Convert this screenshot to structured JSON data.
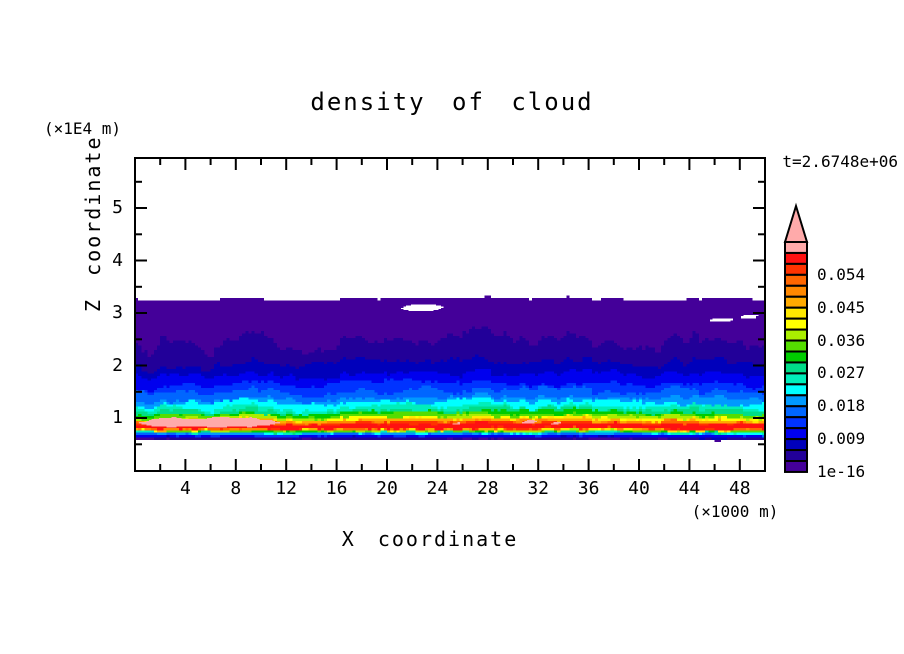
{
  "window": {
    "background": "#FFFFFF",
    "frame_color": "#000000"
  },
  "title": "density of cloud",
  "labels": {
    "z_axis_unit": "(×1E4 m)",
    "timestamp": "t=2.6748e+06",
    "x_axis_title": "X coordinate",
    "z_axis_title": "Z coordinate",
    "x_axis_unit": "(×1000 m)"
  },
  "x_axis": {
    "range": [
      0,
      50
    ],
    "major_ticks": [
      4,
      8,
      12,
      16,
      20,
      24,
      28,
      32,
      36,
      40,
      44,
      48
    ],
    "minor_ticks": [
      2,
      6,
      10,
      14,
      18,
      22,
      26,
      30,
      34,
      38,
      42,
      46
    ]
  },
  "z_axis": {
    "range": [
      0,
      5.95
    ],
    "major_ticks": [
      1,
      2,
      3,
      4,
      5
    ],
    "minor_ticks": [
      0.5,
      1.5,
      2.5,
      3.5,
      4.5,
      5.5
    ]
  },
  "colorbar": {
    "has_overflow_arrow": true,
    "labels": [
      {
        "text": "0.054",
        "boundary_index": 18
      },
      {
        "text": "0.045",
        "boundary_index": 15
      },
      {
        "text": "0.036",
        "boundary_index": 12
      },
      {
        "text": "0.027",
        "boundary_index": 9
      },
      {
        "text": "0.018",
        "boundary_index": 6
      },
      {
        "text": "0.009",
        "boundary_index": 3
      },
      {
        "text": "1e-16",
        "boundary_index": 0
      }
    ]
  },
  "chart_data": {
    "type": "heatmap",
    "title": "density of cloud",
    "xlabel": "X coordinate (×1000 m)",
    "ylabel": "Z coordinate (×1E4 m)",
    "time_annotation": "t=2.6748e+06",
    "x_range": [
      0,
      50
    ],
    "z_range": [
      0,
      5.95
    ],
    "contour_levels": [
      1e-16,
      0.003,
      0.006,
      0.009,
      0.012,
      0.015,
      0.018,
      0.021,
      0.024,
      0.027,
      0.03,
      0.033,
      0.036,
      0.039,
      0.042,
      0.045,
      0.048,
      0.051,
      0.054,
      0.057,
      0.06
    ],
    "palette": [
      "#440099",
      "#220099",
      "#0000BB",
      "#0000EE",
      "#0033FF",
      "#0066FF",
      "#0099FF",
      "#00FFFF",
      "#00EEBB",
      "#00DD88",
      "#00CC00",
      "#55DD00",
      "#AAEE00",
      "#FFFF00",
      "#FFE800",
      "#FFAA00",
      "#FF8800",
      "#FF6600",
      "#FF3300",
      "#FF1111",
      "#FFAAAA"
    ],
    "structure": "horizontally stratified cloud-density field: cloud top near z=3.3, density increasing downward to a maximum above 0.06 near z=0.9, sharp cutoff to clear air below z=0.6",
    "bands": [
      {
        "upper": [
          3.27,
          0.05
        ],
        "lower": [
          0.575,
          0.02
        ]
      },
      {
        "upper": [
          2.45,
          0.33
        ],
        "lower": [
          0.6,
          0.022
        ]
      },
      {
        "upper": [
          2.05,
          0.24
        ],
        "lower": [
          0.622,
          0.024
        ]
      },
      {
        "upper": [
          1.82,
          0.2
        ],
        "lower": [
          0.642,
          0.026
        ]
      },
      {
        "upper": [
          1.64,
          0.18
        ],
        "lower": [
          0.66,
          0.028
        ]
      },
      {
        "upper": [
          1.5,
          0.17
        ],
        "lower": [
          0.676,
          0.03
        ]
      },
      {
        "upper": [
          1.38,
          0.16
        ],
        "lower": [
          0.69,
          0.032
        ]
      },
      {
        "upper": [
          1.285,
          0.15
        ],
        "lower": [
          0.703,
          0.034
        ]
      },
      {
        "upper": [
          1.21,
          0.14
        ],
        "lower": [
          0.714,
          0.036
        ]
      },
      {
        "upper": [
          1.15,
          0.13
        ],
        "lower": [
          0.724,
          0.038
        ]
      },
      {
        "upper": [
          1.1,
          0.12
        ],
        "lower": [
          0.733,
          0.04
        ]
      },
      {
        "upper": [
          1.06,
          0.11
        ],
        "lower": [
          0.741,
          0.042
        ]
      },
      {
        "upper": [
          1.025,
          0.1
        ],
        "lower": [
          0.748,
          0.044
        ]
      },
      {
        "upper": [
          1.0,
          0.095
        ],
        "lower": [
          0.754,
          0.046
        ]
      },
      {
        "upper": [
          0.975,
          0.09
        ],
        "lower": [
          0.76,
          0.048
        ]
      },
      {
        "upper": [
          0.955,
          0.085
        ],
        "lower": [
          0.766,
          0.05
        ]
      },
      {
        "upper": [
          0.935,
          0.08
        ],
        "lower": [
          0.772,
          0.052
        ]
      },
      {
        "upper": [
          0.92,
          0.075
        ],
        "lower": [
          0.778,
          0.054
        ]
      },
      {
        "upper": [
          0.905,
          0.07
        ],
        "lower": [
          0.784,
          0.056
        ]
      },
      {
        "upper": [
          0.89,
          0.065
        ],
        "lower": [
          0.79,
          0.058
        ]
      }
    ],
    "peak_patches": [
      {
        "x": [
          0.3,
          11.5
        ],
        "z": 0.91,
        "half_height": 0.1
      },
      {
        "x": [
          25.2,
          26.0
        ],
        "z": 0.9,
        "half_height": 0.03
      },
      {
        "x": [
          30.7,
          31.9
        ],
        "z": 0.92,
        "half_height": 0.035
      },
      {
        "x": [
          33.0,
          33.9
        ],
        "z": 0.9,
        "half_height": 0.03
      }
    ],
    "holes": [
      {
        "cx": 22.8,
        "cz": 3.1,
        "rx": 1.7,
        "rz": 0.06
      },
      {
        "cx": 46.6,
        "cz": 2.87,
        "rx": 0.95,
        "rz": 0.035
      },
      {
        "cx": 48.8,
        "cz": 2.93,
        "rx": 0.7,
        "rz": 0.03
      }
    ]
  }
}
